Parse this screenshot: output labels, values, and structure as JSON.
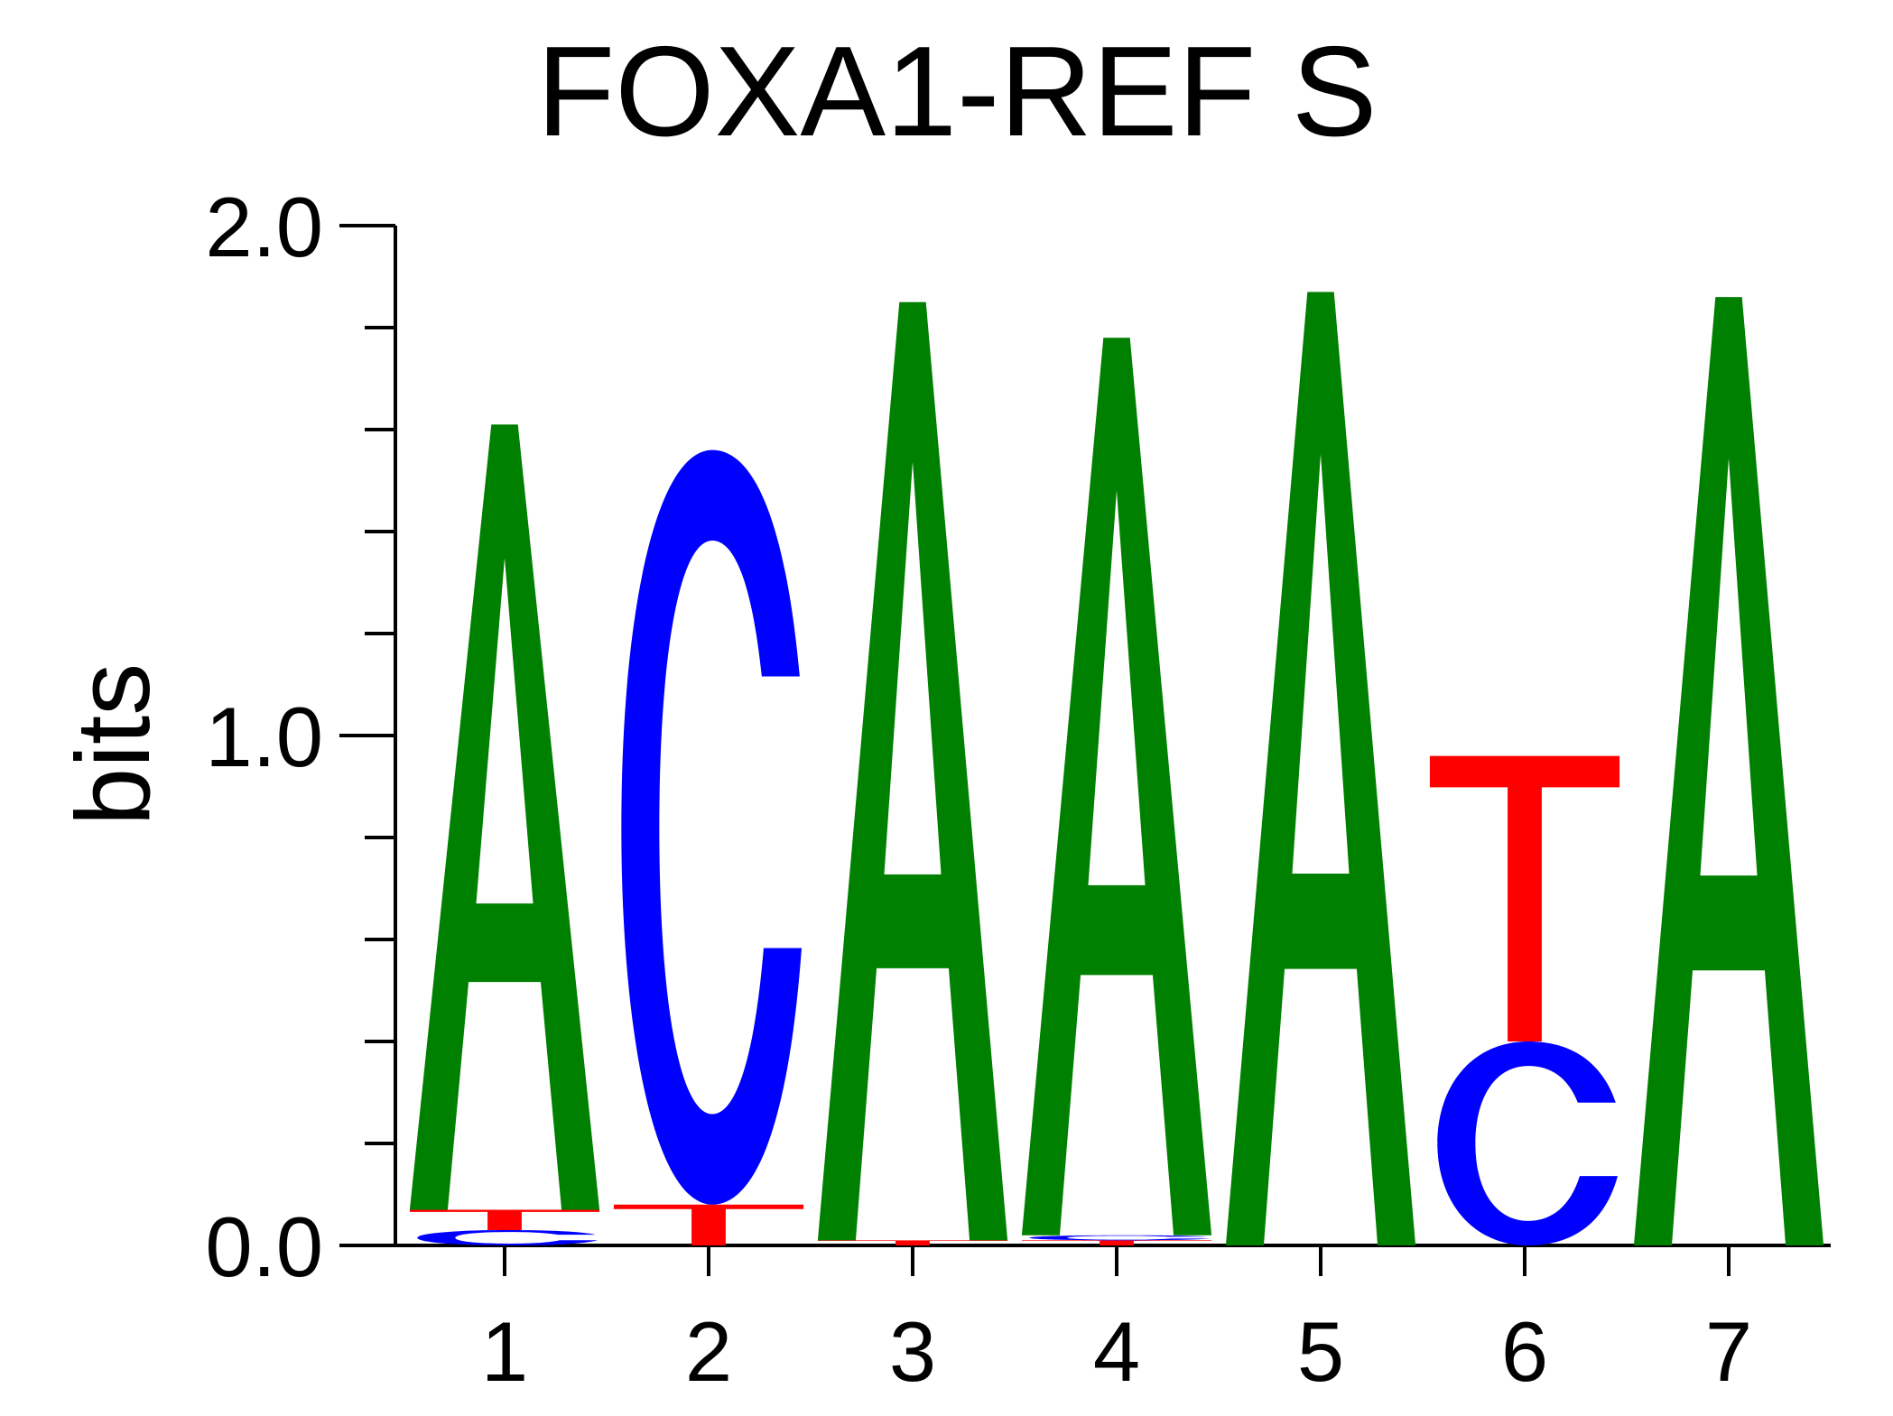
{
  "chart_data": {
    "type": "sequence-logo",
    "title": "FOXA1-REF S",
    "ylabel": "bits",
    "xlabel": "",
    "ylim": [
      0,
      2
    ],
    "y_ticks": [
      "0.0",
      "1.0",
      "2.0"
    ],
    "y_tick_values": [
      0,
      1,
      2
    ],
    "y_minor_step": 0.2,
    "positions": [
      "1",
      "2",
      "3",
      "4",
      "5",
      "6",
      "7"
    ],
    "colors": {
      "A": "#008000",
      "C": "#0000ff",
      "G": "#ffa500",
      "T": "#ff0000"
    },
    "columns": [
      {
        "position": "1",
        "letters": [
          {
            "letter": "C",
            "bits": 0.03
          },
          {
            "letter": "T",
            "bits": 0.04
          },
          {
            "letter": "A",
            "bits": 1.54
          }
        ]
      },
      {
        "position": "2",
        "letters": [
          {
            "letter": "T",
            "bits": 0.08
          },
          {
            "letter": "C",
            "bits": 1.48
          }
        ]
      },
      {
        "position": "3",
        "letters": [
          {
            "letter": "T",
            "bits": 0.01
          },
          {
            "letter": "A",
            "bits": 1.84
          }
        ]
      },
      {
        "position": "4",
        "letters": [
          {
            "letter": "T",
            "bits": 0.01
          },
          {
            "letter": "C",
            "bits": 0.01
          },
          {
            "letter": "A",
            "bits": 1.76
          }
        ]
      },
      {
        "position": "5",
        "letters": [
          {
            "letter": "A",
            "bits": 1.87
          }
        ]
      },
      {
        "position": "6",
        "letters": [
          {
            "letter": "C",
            "bits": 0.4
          },
          {
            "letter": "T",
            "bits": 0.56
          }
        ]
      },
      {
        "position": "7",
        "letters": [
          {
            "letter": "A",
            "bits": 1.86
          }
        ]
      }
    ]
  }
}
